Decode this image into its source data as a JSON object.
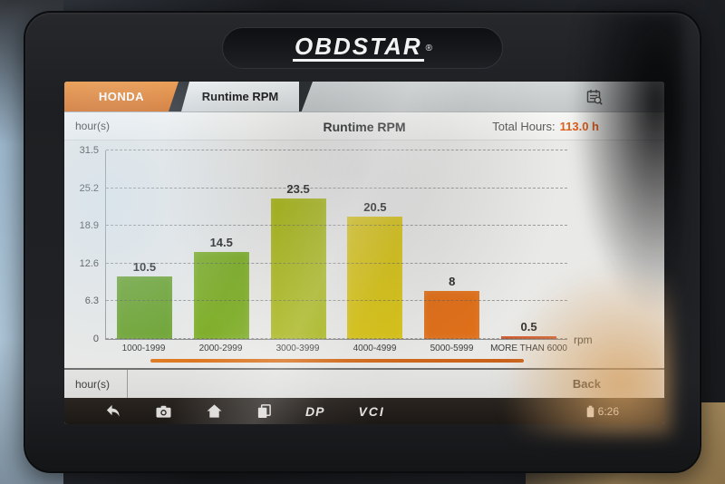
{
  "device": {
    "brand_logo": "OBDSTAR",
    "registered_mark": "®"
  },
  "tab_bar": {
    "tabs": [
      {
        "label": "HONDA"
      },
      {
        "label": "Runtime RPM"
      }
    ],
    "report_icon": "calendar-report-icon"
  },
  "header": {
    "title": "Runtime RPM",
    "total_hours_label": "Total Hours:",
    "total_hours_value": "113.0 h"
  },
  "chart_data": {
    "type": "bar",
    "title": "Runtime RPM",
    "ylabel": "hour(s)",
    "xlabel_unit": "rpm",
    "categories": [
      "1000-1999",
      "2000-2999",
      "3000-3999",
      "4000-4999",
      "5000-5999",
      "MORE THAN 6000"
    ],
    "values": [
      10.5,
      14.5,
      23.5,
      20.5,
      8,
      0.5
    ],
    "value_labels": [
      "10.5",
      "14.5",
      "23.5",
      "20.5",
      "8",
      "0.5"
    ],
    "bar_colors": [
      "#6da32e",
      "#7fae28",
      "#aab819",
      "#d8c316",
      "#e0701a",
      "#cf4f20"
    ],
    "ylim": [
      0,
      31.5
    ],
    "yticks": [
      "31.5",
      "25.2",
      "18.9",
      "12.6",
      "6.3",
      "0"
    ],
    "grid": "dashed horizontal",
    "legend": "none"
  },
  "footer_row": {
    "label": "hour(s)"
  },
  "back_button": {
    "label": "Back"
  },
  "nav_bar": {
    "icons": [
      "back-icon",
      "camera-icon",
      "home-icon",
      "recents-icon",
      "battery-icon"
    ],
    "dp_label": "DP",
    "vci_label": "VCI",
    "time": "6:26"
  },
  "colors": {
    "accent_orange": "#e0802f",
    "total_hours_value": "#e05f1c",
    "scroll_indicator": "#d4691f"
  }
}
